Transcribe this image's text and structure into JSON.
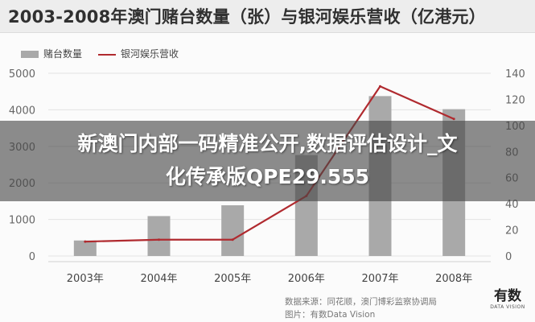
{
  "title": "2003-2008年澳门赌台数量（张）与银河娱乐营收（亿港元）",
  "legend": {
    "bars": "赌台数量",
    "line": "银河娱乐营收"
  },
  "source_line1": "数据来源：同花顺，澳门博彩监察协调局",
  "source_line2": "图片：有数Data Vision",
  "logo": {
    "main": "有数",
    "sub": "DATA VISION"
  },
  "overlay": {
    "line1": "新澳门内部一码精准公开,数据评估设计_文",
    "line2": "化传承版QPE29.555"
  },
  "colors": {
    "bar": "#a9a9a9",
    "line": "#b02a2f"
  },
  "chart_data": {
    "type": "bar",
    "categories": [
      "2003年",
      "2004年",
      "2005年",
      "2006年",
      "2007年",
      "2008年"
    ],
    "series": [
      {
        "name": "赌台数量",
        "type": "bar",
        "axis": "left",
        "values": [
          424,
          1092,
          1388,
          2762,
          4375,
          4017
        ]
      },
      {
        "name": "银河娱乐营收",
        "type": "line",
        "axis": "right",
        "values": [
          11,
          12.5,
          12.5,
          46,
          130,
          105
        ]
      }
    ],
    "left_axis": {
      "ylim": [
        0,
        5000
      ],
      "ticks": [
        "0",
        "1000",
        "2000",
        "3000",
        "4000",
        "5000"
      ]
    },
    "right_axis": {
      "ylim": [
        0,
        140
      ],
      "ticks": [
        "0",
        "20",
        "40",
        "60",
        "80",
        "100",
        "120",
        "140"
      ]
    },
    "grid": true,
    "legend_position": "top-left"
  }
}
